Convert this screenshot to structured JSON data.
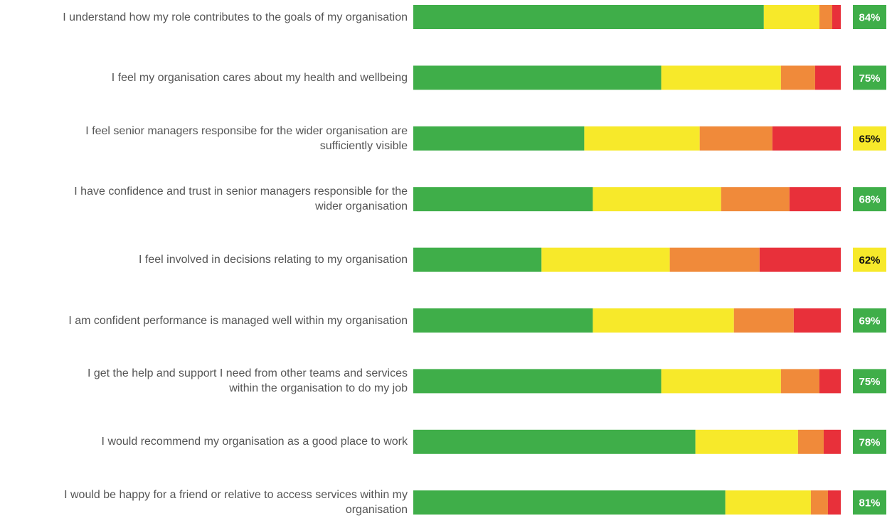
{
  "chart_data": {
    "type": "stacked_bar_horizontal",
    "categories": [
      "I understand how my role contributes to the goals of my organisation",
      "I feel my organisation cares about my health and wellbeing",
      "I feel senior managers responsibe for the wider organisation are\nsufficiently visible",
      "I have confidence and trust in senior managers responsible for the\nwider organisation",
      "I feel involved in decisions relating to my organisation",
      "I am confident performance is managed well within my organisation",
      "I get the help and support I need from other teams and services\nwithin the organisation to do my job",
      "I would recommend my organisation as a good place to work",
      "I would be happy for a friend or relative to access services within my\norganisation"
    ],
    "series": [
      {
        "color": "#3fae49",
        "values": [
          82,
          58,
          40,
          42,
          30,
          42,
          58,
          66,
          73
        ]
      },
      {
        "color": "#f7e92a",
        "values": [
          13,
          28,
          27,
          30,
          30,
          33,
          28,
          24,
          20
        ]
      },
      {
        "color": "#f08a3a",
        "values": [
          3,
          8,
          17,
          16,
          21,
          14,
          9,
          6,
          4
        ]
      },
      {
        "color": "#e8303a",
        "values": [
          2,
          6,
          16,
          12,
          19,
          11,
          5,
          4,
          3
        ]
      }
    ],
    "xlim": [
      0,
      100
    ],
    "scores": [
      84,
      75,
      65,
      68,
      62,
      69,
      75,
      78,
      81
    ],
    "score_labels": [
      "84%",
      "75%",
      "65%",
      "68%",
      "62%",
      "69%",
      "75%",
      "78%",
      "81%"
    ],
    "score_colors": [
      "#3fae49",
      "#3fae49",
      "#f7e92a",
      "#3fae49",
      "#f7e92a",
      "#3fae49",
      "#3fae49",
      "#3fae49",
      "#3fae49"
    ]
  }
}
